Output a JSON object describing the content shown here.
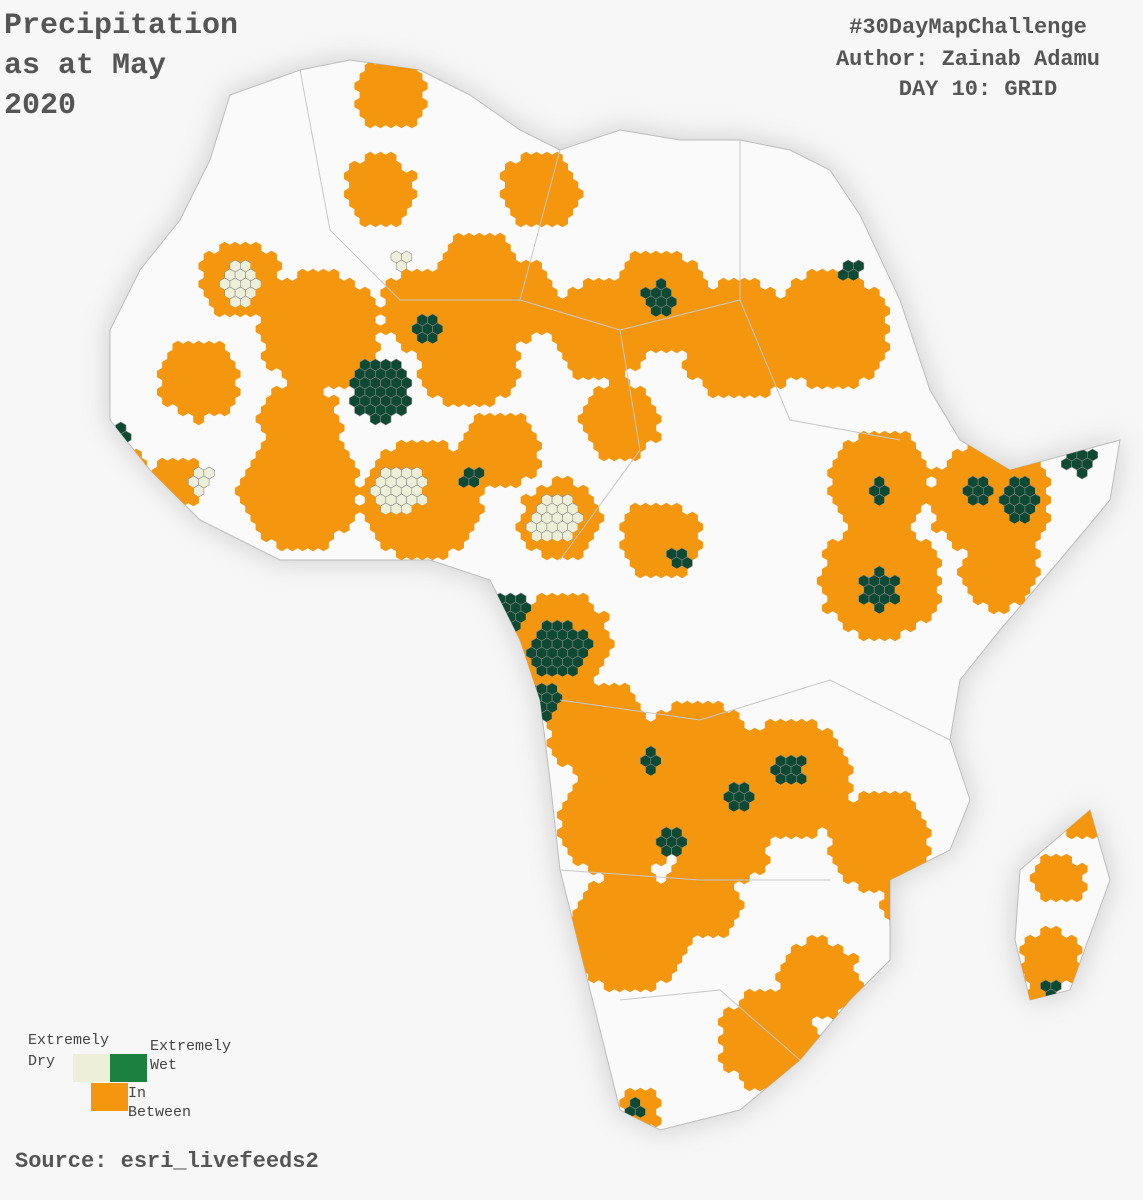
{
  "header": {
    "title_lines": [
      "Precipitation",
      "as at May",
      "2020"
    ],
    "hashtag": "#30DayMapChallenge",
    "author": "Author: Zainab Adamu",
    "day": "DAY 10: GRID"
  },
  "legend": {
    "items": [
      {
        "label_lines": [
          "Extremely",
          "Dry"
        ],
        "color": "#eeefd9"
      },
      {
        "label_lines": [
          "Extremely",
          "Wet"
        ],
        "color": "#1b8040"
      },
      {
        "label_lines": [
          "In",
          "Between"
        ],
        "color": "#f4960e"
      }
    ]
  },
  "source": "Source: esri_livefeeds2"
}
